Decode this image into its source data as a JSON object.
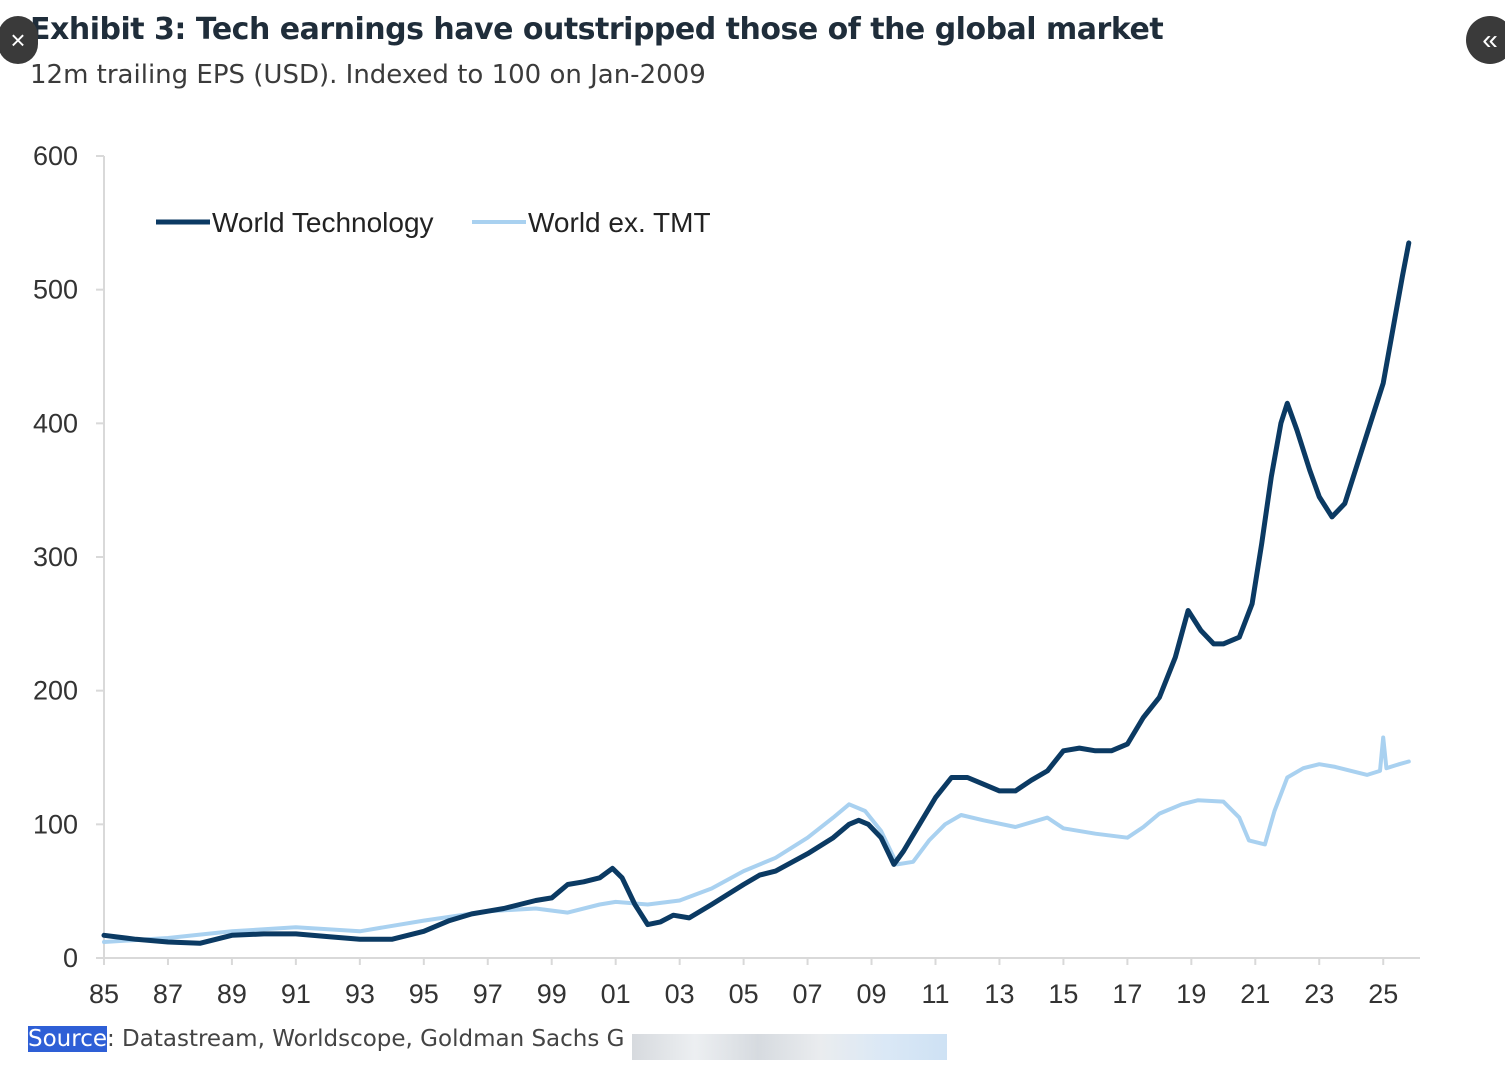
{
  "header": {
    "title": "Exhibit 3: Tech earnings have outstripped those of the global market",
    "subtitle": "12m trailing EPS (USD). Indexed to 100 on Jan-2009"
  },
  "controls": {
    "close_icon": "×",
    "collapse_icon": "«"
  },
  "footer": {
    "source_label": "Source",
    "source_text": ": Datastream, Worldscope, Goldman Sachs G"
  },
  "colors": {
    "tech": "#0b3a63",
    "world": "#a9d1f0",
    "axis": "#d9d9d9"
  },
  "chart_data": {
    "type": "line",
    "title": "Exhibit 3: Tech earnings have outstripped those of the global market",
    "subtitle": "12m trailing EPS (USD). Indexed to 100 on Jan-2009",
    "xlabel": "",
    "ylabel": "",
    "xlim": [
      1985,
      2025.9
    ],
    "ylim": [
      0,
      600
    ],
    "x_ticks": [
      1985,
      1987,
      1989,
      1991,
      1993,
      1995,
      1997,
      1999,
      2001,
      2003,
      2005,
      2007,
      2009,
      2011,
      2013,
      2015,
      2017,
      2019,
      2021,
      2023,
      2025
    ],
    "x_tick_labels": [
      "85",
      "87",
      "89",
      "91",
      "93",
      "95",
      "97",
      "99",
      "01",
      "03",
      "05",
      "07",
      "09",
      "11",
      "13",
      "15",
      "17",
      "19",
      "21",
      "23",
      "25"
    ],
    "y_ticks": [
      0,
      100,
      200,
      300,
      400,
      500,
      600
    ],
    "y_tick_labels": [
      "0",
      "100",
      "200",
      "300",
      "400",
      "500",
      "600"
    ],
    "legend": {
      "position": "top-left",
      "entries": [
        "World Technology",
        "World ex. TMT"
      ]
    },
    "series": [
      {
        "name": "World Technology",
        "x": [
          1985.0,
          1986.0,
          1987.0,
          1988.0,
          1988.5,
          1989.0,
          1990.0,
          1991.0,
          1992.0,
          1993.0,
          1994.0,
          1995.0,
          1995.8,
          1996.5,
          1997.0,
          1997.5,
          1998.0,
          1998.5,
          1999.0,
          1999.5,
          2000.0,
          2000.5,
          2000.9,
          2001.2,
          2001.6,
          2002.0,
          2002.4,
          2002.8,
          2003.3,
          2004.0,
          2005.0,
          2005.5,
          2006.0,
          2007.0,
          2007.8,
          2008.3,
          2008.6,
          2008.9,
          2009.3,
          2009.7,
          2010.0,
          2010.5,
          2011.0,
          2011.5,
          2012.0,
          2012.5,
          2013.0,
          2013.5,
          2014.0,
          2014.5,
          2015.0,
          2015.5,
          2016.0,
          2016.5,
          2017.0,
          2017.5,
          2018.0,
          2018.5,
          2018.9,
          2019.3,
          2019.7,
          2020.0,
          2020.5,
          2020.9,
          2021.2,
          2021.5,
          2021.8,
          2022.0,
          2022.3,
          2022.7,
          2023.0,
          2023.4,
          2023.8,
          2024.2,
          2024.6,
          2025.0,
          2025.3,
          2025.6,
          2025.8
        ],
        "values": [
          17,
          14,
          12,
          11,
          14,
          17,
          18,
          18,
          16,
          14,
          14,
          20,
          28,
          33,
          35,
          37,
          40,
          43,
          45,
          55,
          57,
          60,
          67,
          60,
          40,
          25,
          27,
          32,
          30,
          40,
          55,
          62,
          65,
          78,
          90,
          100,
          103,
          100,
          90,
          70,
          80,
          100,
          120,
          135,
          135,
          130,
          125,
          125,
          133,
          140,
          155,
          157,
          155,
          155,
          160,
          180,
          195,
          225,
          260,
          245,
          235,
          235,
          240,
          265,
          310,
          360,
          400,
          415,
          395,
          365,
          345,
          330,
          340,
          370,
          400,
          430,
          470,
          510,
          535
        ]
      },
      {
        "name": "World ex. TMT",
        "x": [
          1985.0,
          1987.0,
          1989.0,
          1991.0,
          1993.0,
          1995.0,
          1997.0,
          1998.5,
          1999.5,
          2000.5,
          2001.0,
          2002.0,
          2003.0,
          2004.0,
          2005.0,
          2006.0,
          2007.0,
          2007.8,
          2008.3,
          2008.8,
          2009.3,
          2009.8,
          2010.3,
          2010.8,
          2011.3,
          2011.8,
          2012.5,
          2013.5,
          2014.5,
          2015.0,
          2016.0,
          2017.0,
          2017.5,
          2018.0,
          2018.7,
          2019.2,
          2020.0,
          2020.5,
          2020.8,
          2021.3,
          2021.6,
          2022.0,
          2022.5,
          2023.0,
          2023.5,
          2024.0,
          2024.5,
          2024.9,
          2025.0,
          2025.1,
          2025.5,
          2025.8
        ],
        "values": [
          12,
          15,
          20,
          23,
          20,
          28,
          35,
          37,
          34,
          40,
          42,
          40,
          43,
          52,
          65,
          75,
          90,
          105,
          115,
          110,
          95,
          70,
          72,
          88,
          100,
          107,
          103,
          98,
          105,
          97,
          93,
          90,
          98,
          108,
          115,
          118,
          117,
          105,
          88,
          85,
          110,
          135,
          142,
          145,
          143,
          140,
          137,
          140,
          165,
          142,
          145,
          147
        ]
      }
    ]
  }
}
